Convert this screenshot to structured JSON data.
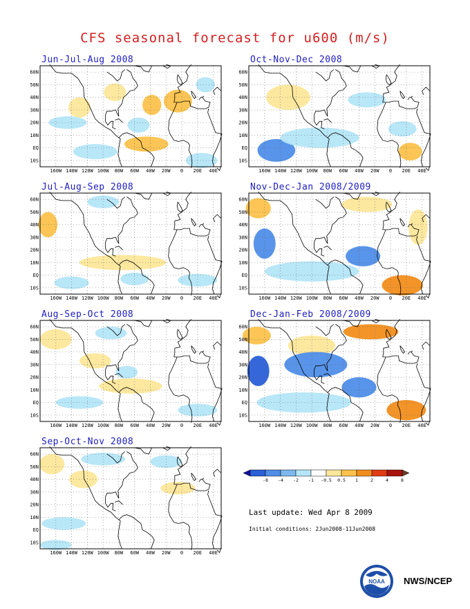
{
  "title": "CFS seasonal forecast for u600 (m/s)",
  "panels": [
    {
      "id": "jja",
      "title": "Jun-Jul-Aug 2008",
      "blobs": [
        {
          "lon": -130,
          "lat": 32,
          "rx": 14,
          "ry": 8,
          "level": 1
        },
        {
          "lon": -85,
          "lat": 44,
          "rx": 14,
          "ry": 7,
          "level": 1
        },
        {
          "lon": -38,
          "lat": 34,
          "rx": 12,
          "ry": 8,
          "level": 2
        },
        {
          "lon": -5,
          "lat": 37,
          "rx": 18,
          "ry": 9,
          "level": 2
        },
        {
          "lon": -45,
          "lat": 3,
          "rx": 28,
          "ry": 6,
          "level": 2
        },
        {
          "lon": -110,
          "lat": -3,
          "rx": 28,
          "ry": 6,
          "level": -1
        },
        {
          "lon": -145,
          "lat": 20,
          "rx": 24,
          "ry": 5,
          "level": -1
        },
        {
          "lon": -55,
          "lat": 18,
          "rx": 14,
          "ry": 6,
          "level": -1
        },
        {
          "lon": 25,
          "lat": -10,
          "rx": 20,
          "ry": 6,
          "level": -1
        },
        {
          "lon": 30,
          "lat": 50,
          "rx": 12,
          "ry": 6,
          "level": -1
        }
      ]
    },
    {
      "id": "ond",
      "title": "Oct-Nov-Dec 2008",
      "blobs": [
        {
          "lon": -130,
          "lat": 40,
          "rx": 28,
          "ry": 10,
          "level": 1
        },
        {
          "lon": -145,
          "lat": -2,
          "rx": 24,
          "ry": 9,
          "level": -2
        },
        {
          "lon": -90,
          "lat": 8,
          "rx": 50,
          "ry": 8,
          "level": -1
        },
        {
          "lon": -30,
          "lat": 38,
          "rx": 24,
          "ry": 6,
          "level": -1
        },
        {
          "lon": 15,
          "lat": 15,
          "rx": 18,
          "ry": 6,
          "level": -1
        },
        {
          "lon": 25,
          "lat": -3,
          "rx": 15,
          "ry": 7,
          "level": 2
        }
      ]
    },
    {
      "id": "jas",
      "title": "Jul-Aug-Sep 2008",
      "blobs": [
        {
          "lon": -170,
          "lat": 40,
          "rx": 12,
          "ry": 10,
          "level": 2
        },
        {
          "lon": -75,
          "lat": 10,
          "rx": 55,
          "ry": 6,
          "level": 1
        },
        {
          "lon": -140,
          "lat": -6,
          "rx": 22,
          "ry": 5,
          "level": -1
        },
        {
          "lon": -100,
          "lat": 58,
          "rx": 20,
          "ry": 5,
          "level": -1
        },
        {
          "lon": -60,
          "lat": -3,
          "rx": 18,
          "ry": 5,
          "level": -1
        },
        {
          "lon": 20,
          "lat": -4,
          "rx": 25,
          "ry": 5,
          "level": -1
        }
      ]
    },
    {
      "id": "ndj",
      "title": "Nov-Dec-Jan 2008/2009",
      "blobs": [
        {
          "lon": -168,
          "lat": 53,
          "rx": 16,
          "ry": 8,
          "level": 2
        },
        {
          "lon": -30,
          "lat": 56,
          "rx": 32,
          "ry": 6,
          "level": 1
        },
        {
          "lon": 35,
          "lat": 38,
          "rx": 12,
          "ry": 14,
          "level": 1
        },
        {
          "lon": -160,
          "lat": 25,
          "rx": 14,
          "ry": 12,
          "level": -2
        },
        {
          "lon": -100,
          "lat": 3,
          "rx": 60,
          "ry": 8,
          "level": -1
        },
        {
          "lon": -35,
          "lat": 15,
          "rx": 22,
          "ry": 8,
          "level": -2
        },
        {
          "lon": 15,
          "lat": -8,
          "rx": 26,
          "ry": 8,
          "level": 3
        }
      ]
    },
    {
      "id": "aso",
      "title": "Aug-Sep-Oct 2008",
      "blobs": [
        {
          "lon": -160,
          "lat": 50,
          "rx": 20,
          "ry": 8,
          "level": 1
        },
        {
          "lon": -110,
          "lat": 33,
          "rx": 20,
          "ry": 6,
          "level": 1
        },
        {
          "lon": -65,
          "lat": 13,
          "rx": 40,
          "ry": 6,
          "level": 1
        },
        {
          "lon": -90,
          "lat": 55,
          "rx": 20,
          "ry": 5,
          "level": -1
        },
        {
          "lon": -130,
          "lat": 0,
          "rx": 30,
          "ry": 5,
          "level": -1
        },
        {
          "lon": -70,
          "lat": 24,
          "rx": 14,
          "ry": 5,
          "level": -1
        },
        {
          "lon": 20,
          "lat": -6,
          "rx": 25,
          "ry": 5,
          "level": -1
        }
      ]
    },
    {
      "id": "djf",
      "title": "Dec-Jan-Feb 2008/2009",
      "blobs": [
        {
          "lon": -170,
          "lat": 53,
          "rx": 18,
          "ry": 7,
          "level": 2
        },
        {
          "lon": -25,
          "lat": 56,
          "rx": 35,
          "ry": 6,
          "level": 3
        },
        {
          "lon": -100,
          "lat": 45,
          "rx": 30,
          "ry": 8,
          "level": 1
        },
        {
          "lon": -168,
          "lat": 25,
          "rx": 14,
          "ry": 12,
          "level": -3
        },
        {
          "lon": -95,
          "lat": 30,
          "rx": 40,
          "ry": 10,
          "level": -2
        },
        {
          "lon": -110,
          "lat": 0,
          "rx": 60,
          "ry": 8,
          "level": -1
        },
        {
          "lon": -40,
          "lat": 12,
          "rx": 22,
          "ry": 8,
          "level": -2
        },
        {
          "lon": 20,
          "lat": -6,
          "rx": 25,
          "ry": 8,
          "level": 3
        }
      ]
    },
    {
      "id": "son",
      "title": "Sep-Oct-Nov 2008",
      "blobs": [
        {
          "lon": -165,
          "lat": 52,
          "rx": 16,
          "ry": 8,
          "level": 1
        },
        {
          "lon": -125,
          "lat": 40,
          "rx": 18,
          "ry": 7,
          "level": 1
        },
        {
          "lon": -5,
          "lat": 33,
          "rx": 22,
          "ry": 5,
          "level": 1
        },
        {
          "lon": -100,
          "lat": 56,
          "rx": 28,
          "ry": 5,
          "level": -1
        },
        {
          "lon": -150,
          "lat": 5,
          "rx": 28,
          "ry": 5,
          "level": -1
        },
        {
          "lon": -160,
          "lat": -12,
          "rx": 20,
          "ry": 4,
          "level": -1
        },
        {
          "lon": -20,
          "lat": 54,
          "rx": 20,
          "ry": 5,
          "level": -1
        }
      ]
    }
  ],
  "lat_labels": [
    "60N",
    "50N",
    "40N",
    "30N",
    "20N",
    "10N",
    "EQ",
    "10S"
  ],
  "lon_labels": [
    "160W",
    "140W",
    "120W",
    "100W",
    "80W",
    "60W",
    "40W",
    "20W",
    "0",
    "20E",
    "40E"
  ],
  "colorbar_labels": [
    "-8",
    "-4",
    "-2",
    "-1",
    "-0.5",
    "0.5",
    "1",
    "2",
    "4",
    "8"
  ],
  "colorbar_colors": [
    "#1410a0",
    "#2a5fd8",
    "#4f8ee8",
    "#7db8ee",
    "#b4e6f8",
    "#ffffff",
    "#fde79a",
    "#fcc24c",
    "#f28e1c",
    "#e03c14",
    "#a8140c",
    "#6a3c28"
  ],
  "last_update": "Last update: Wed Apr 8 2009",
  "initial_conditions": "Initial conditions: 2Jun2008-11Jun2008",
  "credit": "NWS/NCEP"
}
